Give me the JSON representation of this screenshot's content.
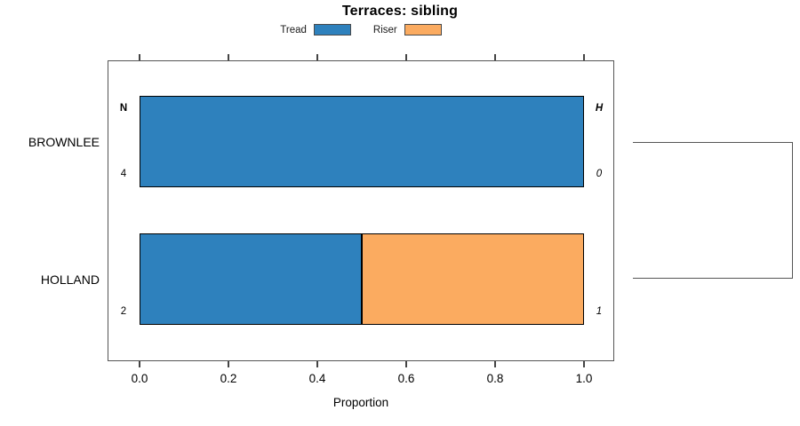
{
  "title": "Terraces: sibling",
  "legend": {
    "items": [
      {
        "label": "Tread",
        "color": "#2e81bd"
      },
      {
        "label": "Riser",
        "color": "#fbab60"
      }
    ]
  },
  "axis": {
    "xlabel": "Proportion",
    "x_ticks": [
      "0.0",
      "0.2",
      "0.4",
      "0.6",
      "0.8",
      "1.0"
    ]
  },
  "colors": {
    "tread": "#2e81bd",
    "riser": "#fbab60",
    "bar_border": "#000000",
    "frame": "#555555",
    "bracket": "#555555"
  },
  "chart_data": {
    "type": "bar",
    "orientation": "horizontal",
    "stacked": true,
    "title": "Terraces: sibling",
    "xlabel": "Proportion",
    "ylabel": "",
    "xlim": [
      0,
      1
    ],
    "x_tick_values": [
      0.0,
      0.2,
      0.4,
      0.6,
      0.8,
      1.0
    ],
    "grid": false,
    "legend_position": "top",
    "categories": [
      "BROWNLEE",
      "HOLLAND"
    ],
    "series": [
      {
        "name": "Tread",
        "color": "#2e81bd",
        "values": [
          1.0,
          0.5
        ]
      },
      {
        "name": "Riser",
        "color": "#fbab60",
        "values": [
          0.0,
          0.5
        ]
      }
    ],
    "row_annotations": [
      {
        "category": "BROWNLEE",
        "left_top": "N",
        "left_bottom": "4",
        "right_top": "H",
        "right_bottom": "0"
      },
      {
        "category": "HOLLAND",
        "left_top": "",
        "left_bottom": "2",
        "right_top": "",
        "right_bottom": "1"
      }
    ],
    "right_bracket_links": [
      "BROWNLEE",
      "HOLLAND"
    ]
  }
}
